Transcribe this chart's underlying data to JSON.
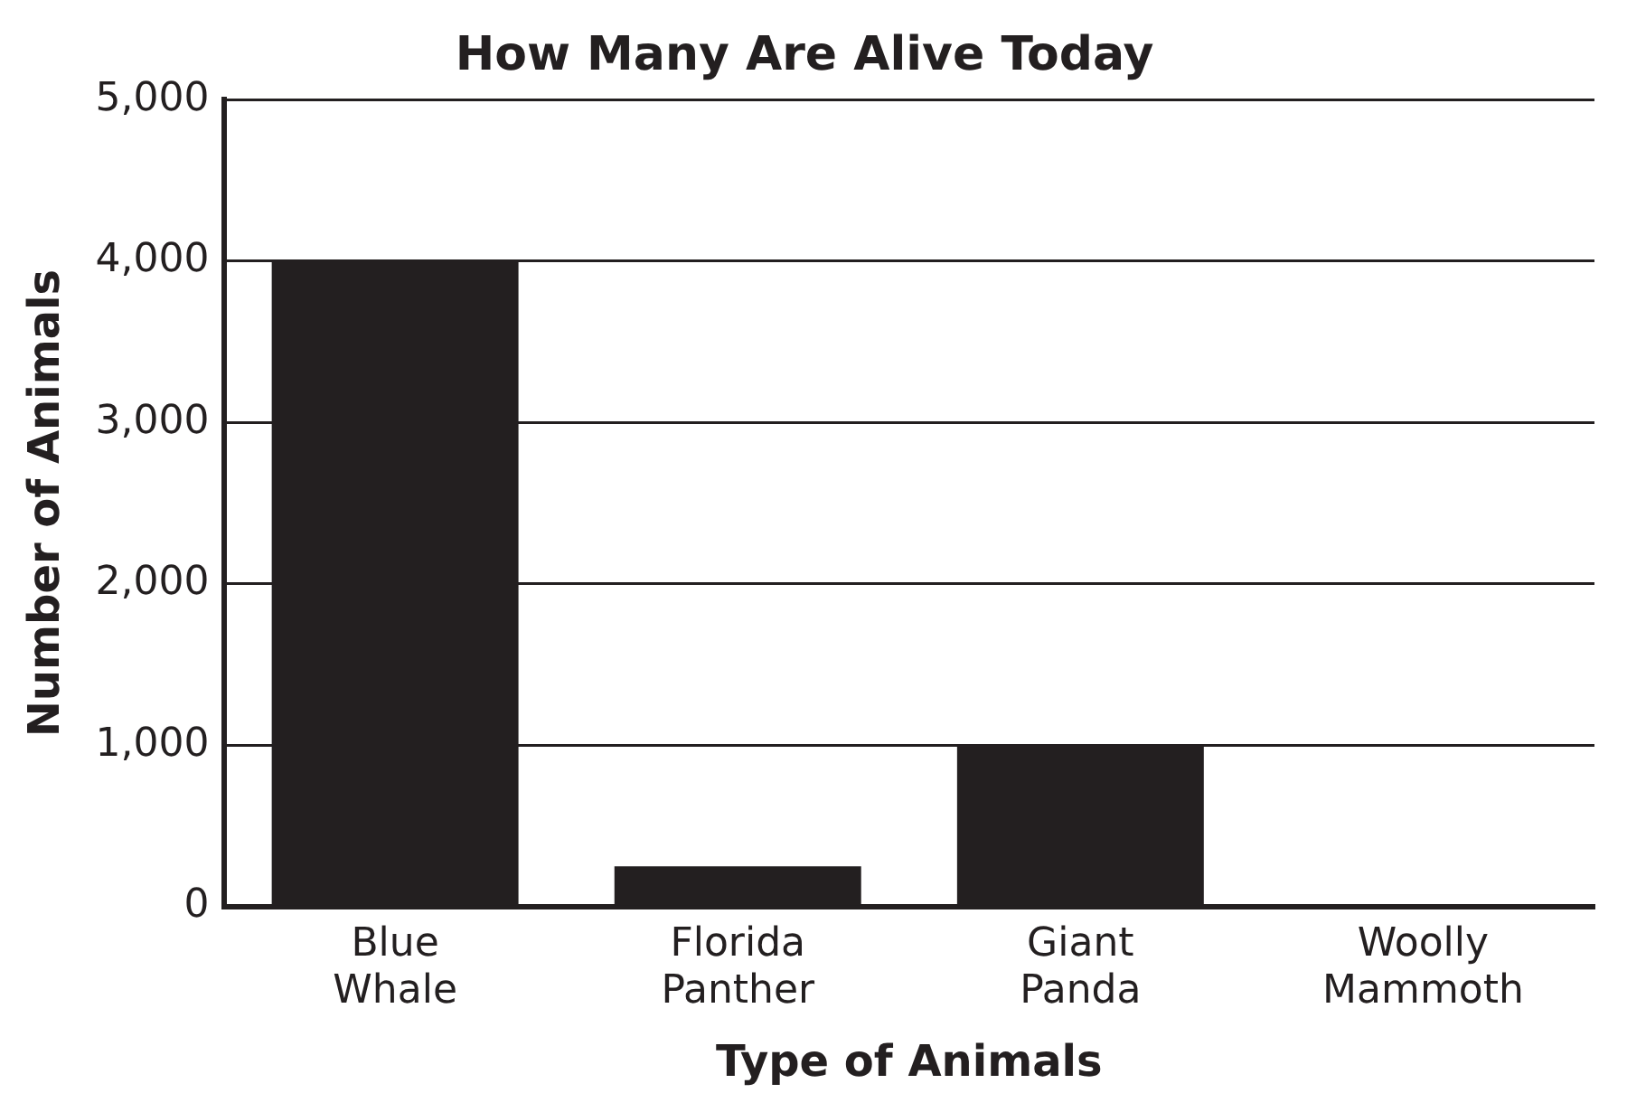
{
  "chart_data": {
    "type": "bar",
    "title": "How Many Are Alive Today",
    "xlabel": "Type of Animals",
    "ylabel": "Number of Animals",
    "categories": [
      "Blue Whale",
      "Florida Panther",
      "Giant Panda",
      "Woolly Mammoth"
    ],
    "values": [
      4000,
      250,
      1000,
      0
    ],
    "color": "#231f20",
    "ylim": [
      0,
      5000
    ],
    "yticks": [
      0,
      {
        "value": 1000,
        "label": "1,000"
      },
      {
        "value": 2000,
        "label": "2,000"
      },
      {
        "value": 3000,
        "label": "3,000"
      },
      {
        "value": 4000,
        "label": "4,000"
      },
      {
        "value": 5000,
        "label": "5,000"
      }
    ],
    "grid": "y"
  }
}
